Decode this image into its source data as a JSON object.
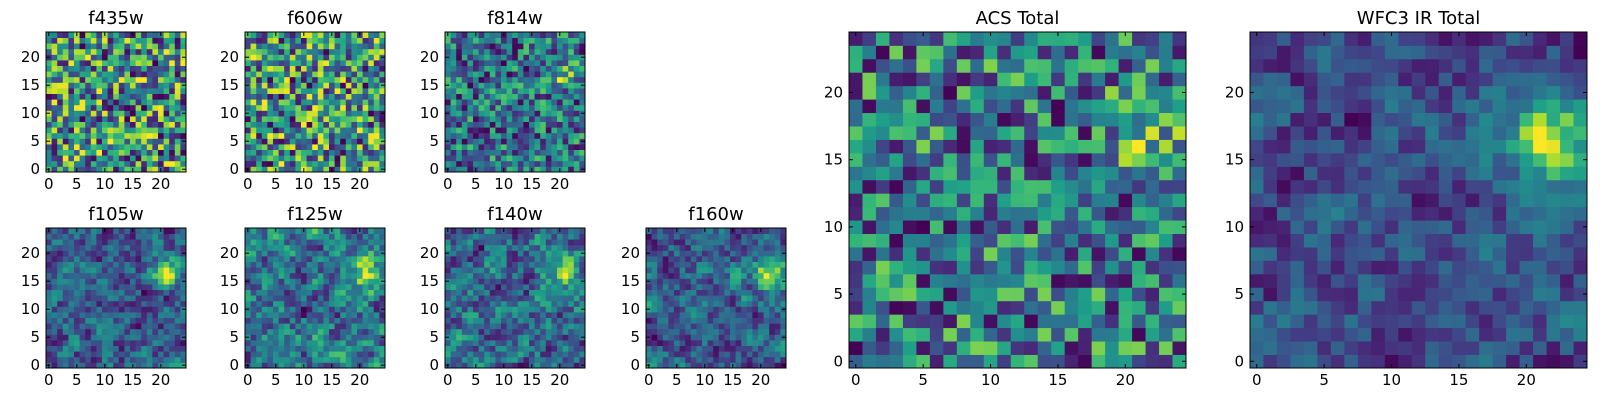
{
  "chart_data": [
    {
      "type": "heatmap",
      "title": "f435w",
      "colormap": "viridis",
      "grid": false,
      "x_ticks": [
        "0",
        "5",
        "10",
        "15",
        "20"
      ],
      "y_ticks": [
        "0",
        "5",
        "10",
        "15",
        "20"
      ],
      "xlim": [
        -0.5,
        24.5
      ],
      "ylim": [
        -0.5,
        24.5
      ],
      "size": 25,
      "blobs": []
    },
    {
      "type": "heatmap",
      "title": "f606w",
      "colormap": "viridis",
      "grid": false,
      "x_ticks": [
        "0",
        "5",
        "10",
        "15",
        "20"
      ],
      "y_ticks": [
        "0",
        "5",
        "10",
        "15",
        "20"
      ],
      "xlim": [
        -0.5,
        24.5
      ],
      "ylim": [
        -0.5,
        24.5
      ],
      "size": 25,
      "blobs": []
    },
    {
      "type": "heatmap",
      "title": "f814w",
      "colormap": "viridis",
      "grid": false,
      "x_ticks": [
        "0",
        "5",
        "10",
        "15",
        "20"
      ],
      "y_ticks": [
        "0",
        "5",
        "10",
        "15",
        "20"
      ],
      "xlim": [
        -0.5,
        24.5
      ],
      "ylim": [
        -0.5,
        24.5
      ],
      "size": 25,
      "blobs": [
        {
          "x": 21,
          "y": 16.5,
          "amp": 0.45,
          "sigma": 1.8
        }
      ]
    },
    {
      "type": "heatmap",
      "title": "f105w",
      "colormap": "viridis",
      "grid": false,
      "x_ticks": [
        "0",
        "5",
        "10",
        "15",
        "20"
      ],
      "y_ticks": [
        "0",
        "5",
        "10",
        "15",
        "20"
      ],
      "xlim": [
        -0.5,
        24.5
      ],
      "ylim": [
        -0.5,
        24.5
      ],
      "size": 25,
      "blobs": [
        {
          "x": 21,
          "y": 16.5,
          "amp": 0.55,
          "sigma": 2.0
        }
      ]
    },
    {
      "type": "heatmap",
      "title": "f125w",
      "colormap": "viridis",
      "grid": false,
      "x_ticks": [
        "0",
        "5",
        "10",
        "15",
        "20"
      ],
      "y_ticks": [
        "0",
        "5",
        "10",
        "15",
        "20"
      ],
      "xlim": [
        -0.5,
        24.5
      ],
      "ylim": [
        -0.5,
        24.5
      ],
      "size": 25,
      "blobs": [
        {
          "x": 21,
          "y": 16,
          "amp": 0.5,
          "sigma": 2.0
        }
      ]
    },
    {
      "type": "heatmap",
      "title": "f140w",
      "colormap": "viridis",
      "grid": false,
      "x_ticks": [
        "0",
        "5",
        "10",
        "15",
        "20"
      ],
      "y_ticks": [
        "0",
        "5",
        "10",
        "15",
        "20"
      ],
      "xlim": [
        -0.5,
        24.5
      ],
      "ylim": [
        -0.5,
        24.5
      ],
      "size": 25,
      "blobs": [
        {
          "x": 20.5,
          "y": 17,
          "amp": 0.55,
          "sigma": 2.0
        }
      ]
    },
    {
      "type": "heatmap",
      "title": "f160w",
      "colormap": "viridis",
      "grid": false,
      "x_ticks": [
        "0",
        "5",
        "10",
        "15",
        "20"
      ],
      "y_ticks": [
        "0",
        "5",
        "10",
        "15",
        "20"
      ],
      "xlim": [
        -0.5,
        24.5
      ],
      "ylim": [
        -0.5,
        24.5
      ],
      "size": 25,
      "blobs": [
        {
          "x": 21.5,
          "y": 16,
          "amp": 0.7,
          "sigma": 2.2
        }
      ]
    },
    {
      "type": "heatmap",
      "title": "ACS Total",
      "colormap": "viridis",
      "grid": false,
      "x_ticks": [
        "0",
        "5",
        "10",
        "15",
        "20"
      ],
      "y_ticks": [
        "0",
        "5",
        "10",
        "15",
        "20"
      ],
      "xlim": [
        -0.5,
        24.5
      ],
      "ylim": [
        -0.5,
        24.5
      ],
      "size": 25,
      "blobs": [
        {
          "x": 21.5,
          "y": 17,
          "amp": 0.45,
          "sigma": 1.8
        }
      ]
    },
    {
      "type": "heatmap",
      "title": "WFC3 IR Total",
      "colormap": "viridis",
      "grid": false,
      "x_ticks": [
        "0",
        "5",
        "10",
        "15",
        "20"
      ],
      "y_ticks": [
        "0",
        "5",
        "10",
        "15",
        "20"
      ],
      "xlim": [
        -0.5,
        24.5
      ],
      "ylim": [
        -0.5,
        24.5
      ],
      "size": 25,
      "blobs": [
        {
          "x": 21.5,
          "y": 16.5,
          "amp": 0.9,
          "sigma": 2.4
        }
      ]
    }
  ]
}
